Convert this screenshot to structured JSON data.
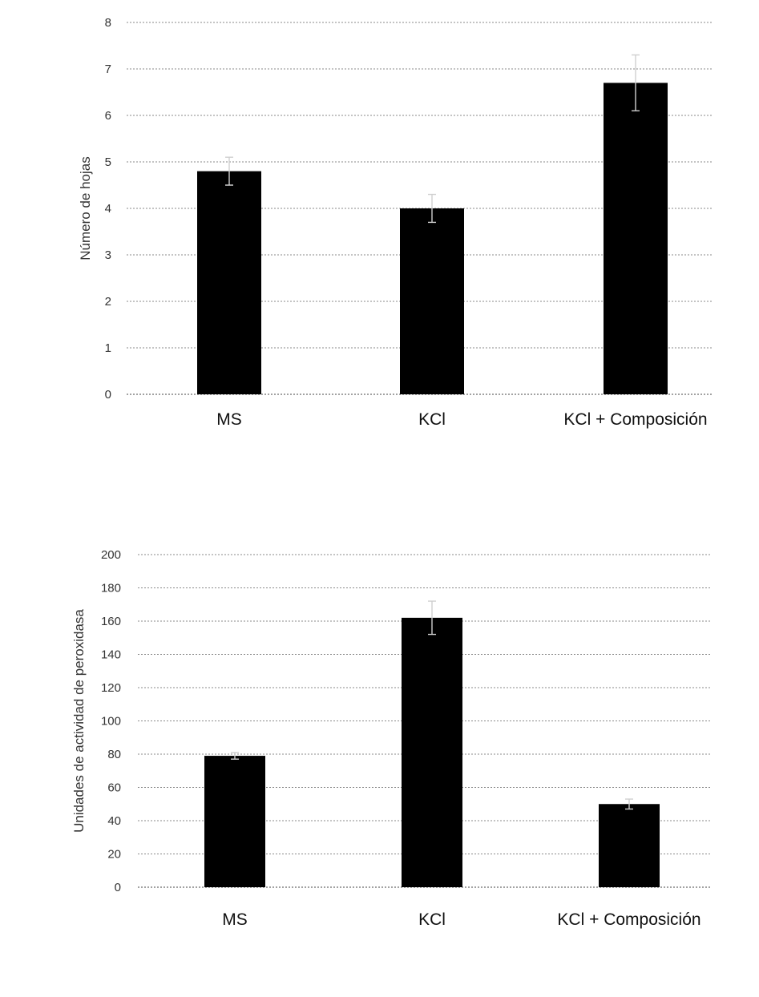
{
  "colors": {
    "bar": "#000000",
    "grid": "#8a8a8a",
    "text": "#222222"
  },
  "chart_data": [
    {
      "type": "bar",
      "title": "",
      "xlabel": "",
      "ylabel": "Número de hojas",
      "categories": [
        "MS",
        "KCl",
        "KCl + Composición"
      ],
      "values": [
        4.8,
        4.0,
        6.7
      ],
      "error": [
        0.3,
        0.3,
        0.6
      ],
      "ylim": [
        0,
        8
      ],
      "yticks": [
        0,
        1,
        2,
        3,
        4,
        5,
        6,
        7,
        8
      ],
      "grid": true,
      "legend": "none"
    },
    {
      "type": "bar",
      "title": "",
      "xlabel": "",
      "ylabel": "Unidades de actividad de peroxidasa",
      "categories": [
        "MS",
        "KCl",
        "KCl + Composición"
      ],
      "values": [
        79,
        162,
        50
      ],
      "error": [
        2,
        10,
        3
      ],
      "ylim": [
        0,
        200
      ],
      "yticks": [
        0,
        20,
        40,
        60,
        80,
        100,
        120,
        140,
        160,
        180,
        200
      ],
      "grid": true,
      "legend": "none"
    }
  ]
}
